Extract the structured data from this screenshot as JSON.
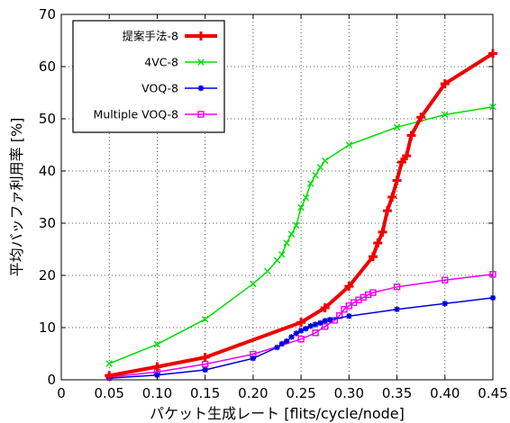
{
  "chart_data": {
    "type": "line",
    "title": "",
    "xlabel": "パケット生成レート [flits/cycle/node]",
    "ylabel": "平均バッファ利用率 [%]",
    "xlim": [
      0,
      0.45
    ],
    "ylim": [
      0,
      70
    ],
    "x_ticks": [
      "0",
      "0.05",
      "0.10",
      "0.15",
      "0.20",
      "0.25",
      "0.30",
      "0.35",
      "0.40",
      "0.45"
    ],
    "y_ticks": [
      "0",
      "10",
      "20",
      "30",
      "40",
      "50",
      "60",
      "70"
    ],
    "grid": true,
    "legend_position": "top-left",
    "series": [
      {
        "name": "提案手法-8",
        "color": "#ee0000",
        "marker": "plus",
        "x": [
          0.05,
          0.1,
          0.15,
          0.25,
          0.275,
          0.3,
          0.325,
          0.33,
          0.335,
          0.34,
          0.345,
          0.35,
          0.355,
          0.36,
          0.365,
          0.375,
          0.4,
          0.45
        ],
        "y": [
          0.8,
          2.5,
          4.3,
          11.0,
          13.8,
          17.9,
          23.6,
          26.2,
          28.3,
          32.4,
          35.0,
          38.2,
          41.7,
          42.9,
          46.8,
          50.3,
          56.7,
          62.5
        ]
      },
      {
        "name": "4VC-8",
        "color": "#00dd00",
        "marker": "x",
        "x": [
          0.05,
          0.1,
          0.15,
          0.2,
          0.215,
          0.225,
          0.23,
          0.235,
          0.24,
          0.245,
          0.25,
          0.255,
          0.26,
          0.265,
          0.27,
          0.275,
          0.3,
          0.35,
          0.4,
          0.45
        ],
        "y": [
          3.1,
          6.8,
          11.6,
          18.4,
          20.8,
          22.9,
          24.0,
          26.2,
          27.9,
          29.6,
          33.0,
          34.9,
          37.6,
          39.2,
          40.7,
          42.0,
          45.0,
          48.4,
          50.8,
          52.3
        ]
      },
      {
        "name": "VOQ-8",
        "color": "#0000dd",
        "marker": "asterisk",
        "x": [
          0.05,
          0.1,
          0.15,
          0.2,
          0.225,
          0.23,
          0.235,
          0.24,
          0.245,
          0.25,
          0.255,
          0.26,
          0.265,
          0.27,
          0.275,
          0.28,
          0.3,
          0.35,
          0.4,
          0.45
        ],
        "y": [
          0.3,
          0.9,
          1.9,
          4.1,
          6.2,
          6.9,
          7.4,
          8.2,
          8.9,
          9.4,
          9.8,
          10.3,
          10.6,
          10.9,
          11.3,
          11.5,
          12.2,
          13.5,
          14.6,
          15.7
        ]
      },
      {
        "name": "Multiple VOQ-8",
        "color": "#ee00ee",
        "marker": "square",
        "x": [
          0.05,
          0.1,
          0.15,
          0.2,
          0.25,
          0.265,
          0.275,
          0.285,
          0.29,
          0.295,
          0.3,
          0.305,
          0.31,
          0.315,
          0.32,
          0.325,
          0.35,
          0.4,
          0.45
        ],
        "y": [
          0.5,
          1.5,
          3.0,
          4.9,
          7.8,
          9.0,
          10.2,
          11.4,
          12.3,
          13.5,
          14.2,
          14.8,
          15.3,
          15.8,
          16.3,
          16.7,
          17.8,
          19.1,
          20.2
        ]
      }
    ]
  }
}
